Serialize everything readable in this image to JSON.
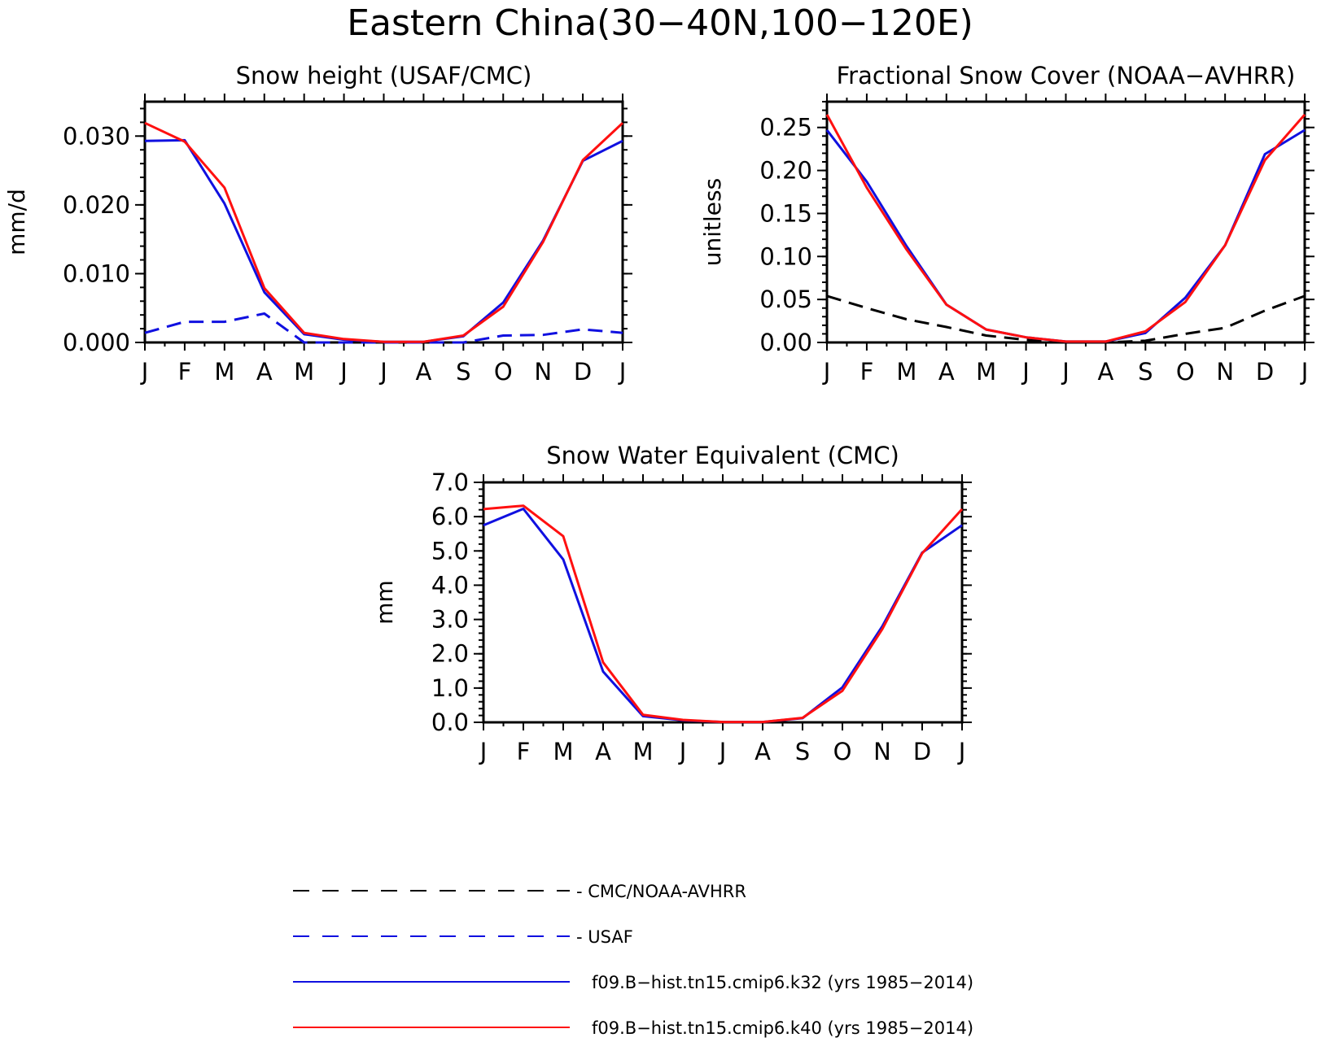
{
  "figure": {
    "title": "Eastern China(30−40N,100−120E)"
  },
  "colors": {
    "obs_black": "#000000",
    "usaf_blue": "#1010e0",
    "k32_blue": "#1010e0",
    "k40_red": "#ff1010"
  },
  "chart_data": [
    {
      "type": "line",
      "title": "Snow height (USAF/CMC)",
      "ylabel": "mm/d",
      "xlabel": "",
      "x": [
        "J",
        "F",
        "M",
        "A",
        "M",
        "J",
        "J",
        "A",
        "S",
        "O",
        "N",
        "D",
        "J"
      ],
      "ylim": [
        0,
        0.035
      ],
      "yticks": [
        0.0,
        0.01,
        0.02,
        0.03
      ],
      "yticklabels": [
        "0.000",
        "0.010",
        "0.020",
        "0.030"
      ],
      "series": [
        {
          "name": "CMC/NOAA-AVHRR",
          "style": "dashed",
          "color": "#000000",
          "values": [
            0,
            0,
            0,
            0,
            0,
            0,
            0,
            0,
            0,
            0,
            0,
            0,
            0
          ]
        },
        {
          "name": "USAF",
          "style": "dashed",
          "color": "#1010e0",
          "values": [
            0.0014,
            0.003,
            0.003,
            0.0042,
            0.0,
            0.0,
            0.0,
            0.0,
            0.0,
            0.001,
            0.0011,
            0.0019,
            0.0014
          ]
        },
        {
          "name": "f09.B−hist.tn15.cmip6.k32 (yrs 1985−2014)",
          "style": "solid",
          "color": "#1010e0",
          "values": [
            0.0293,
            0.0294,
            0.0202,
            0.0073,
            0.0012,
            0.0004,
            0.0001,
            0.0001,
            0.0009,
            0.0058,
            0.0148,
            0.0264,
            0.0293
          ]
        },
        {
          "name": "f09.B−hist.tn15.cmip6.k40 (yrs 1985−2014)",
          "style": "solid",
          "color": "#ff1010",
          "values": [
            0.0319,
            0.0292,
            0.0225,
            0.0079,
            0.0014,
            0.0005,
            0.0001,
            0.0001,
            0.001,
            0.0052,
            0.0146,
            0.0265,
            0.0319
          ]
        }
      ]
    },
    {
      "type": "line",
      "title": "Fractional Snow Cover (NOAA−AVHRR)",
      "ylabel": "unitless",
      "xlabel": "",
      "x": [
        "J",
        "F",
        "M",
        "A",
        "M",
        "J",
        "J",
        "A",
        "S",
        "O",
        "N",
        "D",
        "J"
      ],
      "ylim": [
        0,
        0.28
      ],
      "yticks": [
        0.0,
        0.05,
        0.1,
        0.15,
        0.2,
        0.25
      ],
      "yticklabels": [
        "0.00",
        "0.05",
        "0.10",
        "0.15",
        "0.20",
        "0.25"
      ],
      "series": [
        {
          "name": "CMC/NOAA-AVHRR",
          "style": "dashed",
          "color": "#000000",
          "values": [
            0.054,
            0.04,
            0.027,
            0.018,
            0.008,
            0.003,
            0.0,
            0.0,
            0.002,
            0.01,
            0.017,
            0.037,
            0.054
          ]
        },
        {
          "name": "f09.B−hist.tn15.cmip6.k32 (yrs 1985−2014)",
          "style": "solid",
          "color": "#1010e0",
          "values": [
            0.247,
            0.187,
            0.112,
            0.044,
            0.015,
            0.006,
            0.001,
            0.001,
            0.011,
            0.052,
            0.113,
            0.219,
            0.247
          ]
        },
        {
          "name": "f09.B−hist.tn15.cmip6.k40 (yrs 1985−2014)",
          "style": "solid",
          "color": "#ff1010",
          "values": [
            0.265,
            0.18,
            0.108,
            0.044,
            0.015,
            0.006,
            0.001,
            0.001,
            0.013,
            0.047,
            0.113,
            0.212,
            0.265
          ]
        }
      ]
    },
    {
      "type": "line",
      "title": "Snow Water Equivalent (CMC)",
      "ylabel": "mm",
      "xlabel": "",
      "x": [
        "J",
        "F",
        "M",
        "A",
        "M",
        "J",
        "J",
        "A",
        "S",
        "O",
        "N",
        "D",
        "J"
      ],
      "ylim": [
        0,
        7.0
      ],
      "yticks": [
        0.0,
        1.0,
        2.0,
        3.0,
        4.0,
        5.0,
        6.0,
        7.0
      ],
      "yticklabels": [
        "0.0",
        "1.0",
        "2.0",
        "3.0",
        "4.0",
        "5.0",
        "6.0",
        "7.0"
      ],
      "series": [
        {
          "name": "CMC/NOAA-AVHRR",
          "style": "dashed",
          "color": "#000000",
          "values": [
            0,
            0,
            0,
            0,
            0,
            0,
            0,
            0,
            0,
            0,
            0,
            0,
            0
          ]
        },
        {
          "name": "f09.B−hist.tn15.cmip6.k32 (yrs 1985−2014)",
          "style": "solid",
          "color": "#1010e0",
          "values": [
            5.75,
            6.23,
            4.75,
            1.48,
            0.18,
            0.06,
            0.01,
            0.01,
            0.12,
            1.02,
            2.8,
            4.95,
            5.75
          ]
        },
        {
          "name": "f09.B−hist.tn15.cmip6.k40 (yrs 1985−2014)",
          "style": "solid",
          "color": "#ff1010",
          "values": [
            6.22,
            6.32,
            5.43,
            1.75,
            0.22,
            0.07,
            0.01,
            0.01,
            0.13,
            0.92,
            2.72,
            4.93,
            6.22
          ]
        }
      ]
    }
  ],
  "legend": {
    "entries": [
      {
        "label": "- CMC/NOAA-AVHRR",
        "style": "dashed",
        "color": "#000000"
      },
      {
        "label": "- USAF",
        "style": "dashed",
        "color": "#1010e0"
      },
      {
        "label": "f09.B−hist.tn15.cmip6.k32 (yrs 1985−2014)",
        "style": "solid",
        "color": "#1010e0"
      },
      {
        "label": "f09.B−hist.tn15.cmip6.k40 (yrs 1985−2014)",
        "style": "solid",
        "color": "#ff1010"
      }
    ]
  }
}
